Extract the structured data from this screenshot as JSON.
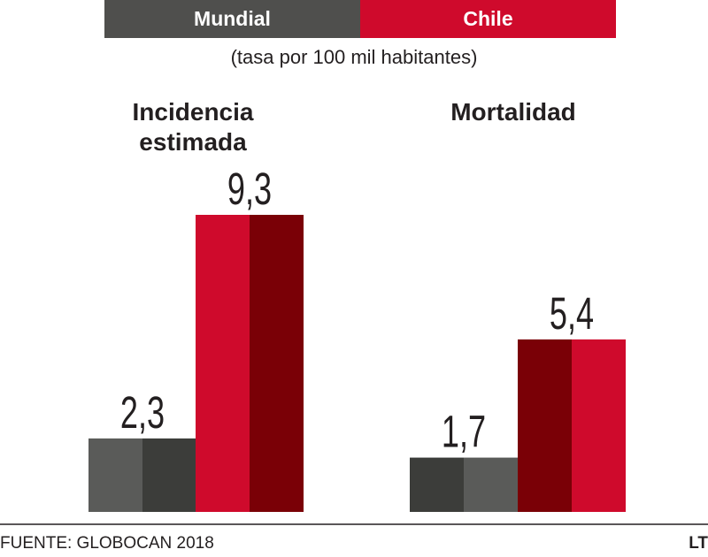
{
  "legend": {
    "mundial_label": "Mundial",
    "chile_label": "Chile",
    "mundial_color": "#4f4f4d",
    "chile_color": "#cf0a2c"
  },
  "subtitle": "(tasa por 100 mil habitantes)",
  "footer": {
    "source": "FUENTE: GLOBOCAN 2018",
    "logo": "LT"
  },
  "chart_data": {
    "type": "bar",
    "categories": [
      "Incidencia estimada",
      "Mortalidad"
    ],
    "series": [
      {
        "name": "Mundial",
        "values": [
          2.3,
          1.7
        ],
        "labels": [
          "2,3",
          "1,7"
        ]
      },
      {
        "name": "Chile",
        "values": [
          9.3,
          5.4
        ],
        "labels": [
          "9,3",
          "5,4"
        ]
      }
    ],
    "ylim": [
      0,
      9.3
    ],
    "grid": false,
    "legend": "top"
  }
}
